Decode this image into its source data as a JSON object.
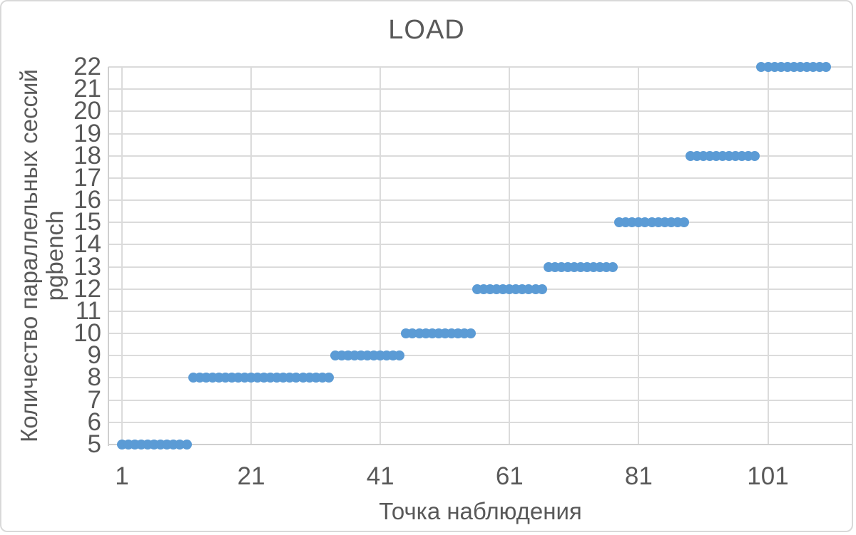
{
  "chart_data": {
    "type": "scatter",
    "title": "LOAD",
    "xlabel": "Точка наблюдения",
    "ylabel_line1": "Количество параллельных сессий",
    "ylabel_line2": "pgbench",
    "x_ticks": [
      1,
      21,
      41,
      61,
      81,
      101
    ],
    "y_ticks": [
      22,
      21,
      20,
      19,
      18,
      17,
      16,
      15,
      14,
      13,
      12,
      11,
      10,
      9,
      8,
      7,
      6,
      5
    ],
    "xlim": [
      1,
      110
    ],
    "ylim": [
      5,
      22
    ],
    "grid": true,
    "legend_position": "none",
    "marker_color": "#5B9BD5",
    "text_color": "#595959",
    "gridline_color": "#DBDBDB",
    "series": [
      {
        "name": "pgbench parallel sessions",
        "segments": [
          {
            "y": 5,
            "x_start": 1,
            "x_end": 11
          },
          {
            "y": 8,
            "x_start": 12,
            "x_end": 33
          },
          {
            "y": 9,
            "x_start": 34,
            "x_end": 44
          },
          {
            "y": 10,
            "x_start": 45,
            "x_end": 55
          },
          {
            "y": 12,
            "x_start": 56,
            "x_end": 66
          },
          {
            "y": 13,
            "x_start": 67,
            "x_end": 77
          },
          {
            "y": 15,
            "x_start": 78,
            "x_end": 88
          },
          {
            "y": 18,
            "x_start": 89,
            "x_end": 99
          },
          {
            "y": 22,
            "x_start": 100,
            "x_end": 110
          }
        ]
      }
    ]
  }
}
